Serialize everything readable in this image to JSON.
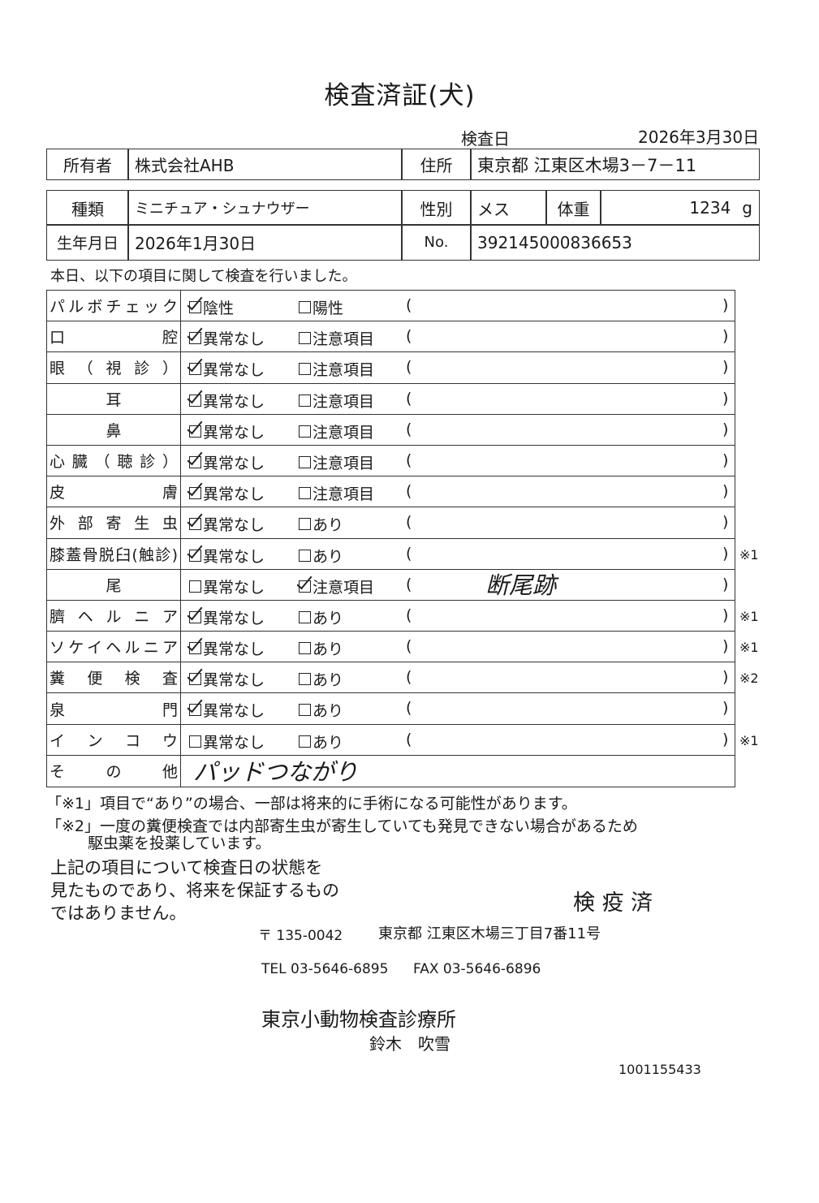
{
  "title": "検査済証(犬)",
  "exam_date_label": "検査日",
  "exam_date": "2026年3月30日",
  "owner": {
    "label": "所有者",
    "value": "株式会社AHB",
    "address_label": "住所",
    "address": "東京都 江東区木場3－7－11"
  },
  "pet": {
    "type_label": "種類",
    "type": "ミニチュア・シュナウザー",
    "sex_label": "性別",
    "sex": "メス",
    "weight_label": "体重",
    "weight": "1234",
    "weight_unit": "g",
    "birth_label": "生年月日",
    "birth": "2026年1月30日",
    "no_label": "No.",
    "no": "392145000836653"
  },
  "intro": "本日、以下の項目に関して検査を行いました。",
  "paren_open": "(",
  "paren_close": ")",
  "items": [
    {
      "label": "パルボチェック",
      "opt1": "陰性",
      "opt2": "陽性",
      "checked": 1,
      "note": "",
      "mark": ""
    },
    {
      "label": "口腔",
      "opt1": "異常なし",
      "opt2": "注意項目",
      "checked": 1,
      "note": "",
      "mark": ""
    },
    {
      "label": "眼（視診）",
      "opt1": "異常なし",
      "opt2": "注意項目",
      "checked": 1,
      "note": "",
      "mark": ""
    },
    {
      "label": "耳",
      "opt1": "異常なし",
      "opt2": "注意項目",
      "checked": 1,
      "note": "",
      "mark": ""
    },
    {
      "label": "鼻",
      "opt1": "異常なし",
      "opt2": "注意項目",
      "checked": 1,
      "note": "",
      "mark": ""
    },
    {
      "label": "心臓（聴診）",
      "opt1": "異常なし",
      "opt2": "注意項目",
      "checked": 1,
      "note": "",
      "mark": ""
    },
    {
      "label": "皮膚",
      "opt1": "異常なし",
      "opt2": "注意項目",
      "checked": 1,
      "note": "",
      "mark": ""
    },
    {
      "label": "外部寄生虫",
      "opt1": "異常なし",
      "opt2": "あり",
      "checked": 1,
      "note": "",
      "mark": ""
    },
    {
      "label": "膝蓋骨脱臼(触診)",
      "opt1": "異常なし",
      "opt2": "あり",
      "checked": 1,
      "note": "",
      "mark": "※1"
    },
    {
      "label": "尾",
      "opt1": "異常なし",
      "opt2": "注意項目",
      "checked": 2,
      "note": "断尾跡",
      "mark": ""
    },
    {
      "label": "臍ヘルニア",
      "opt1": "異常なし",
      "opt2": "あり",
      "checked": 1,
      "note": "",
      "mark": "※1"
    },
    {
      "label": "ソケイヘルニア",
      "opt1": "異常なし",
      "opt2": "あり",
      "checked": 1,
      "note": "",
      "mark": "※1"
    },
    {
      "label": "糞便検査",
      "opt1": "異常なし",
      "opt2": "あり",
      "checked": 1,
      "note": "",
      "mark": "※2"
    },
    {
      "label": "泉門",
      "opt1": "異常なし",
      "opt2": "あり",
      "checked": 1,
      "note": "",
      "mark": ""
    },
    {
      "label": "インコウ",
      "opt1": "異常なし",
      "opt2": "あり",
      "checked": 0,
      "note": "",
      "mark": "※1"
    }
  ],
  "other": {
    "label": "その他",
    "value": "パッドつながり"
  },
  "footnotes": {
    "n1": "「※1」項目で“あり”の場合、一部は将来的に手術になる可能性があります。",
    "n2a": "「※2」一度の糞便検査では内部寄生虫が寄生していても発見できない場合があるため",
    "n2b": "駆虫薬を投薬しています。"
  },
  "disclaimer": [
    "上記の項目について検査日の状態を",
    "見たものであり、将来を保証するもの",
    "ではありません。"
  ],
  "stamp": "検 疫 済",
  "clinic": {
    "postal": "〒 135-0042",
    "address": "東京都 江東区木場三丁目7番11号",
    "tel": "TEL 03-5646-6895",
    "fax": "FAX 03-5646-6896",
    "name": "東京小動物検査診療所",
    "person": "鈴木　吹雪"
  },
  "serial": "1001155433"
}
